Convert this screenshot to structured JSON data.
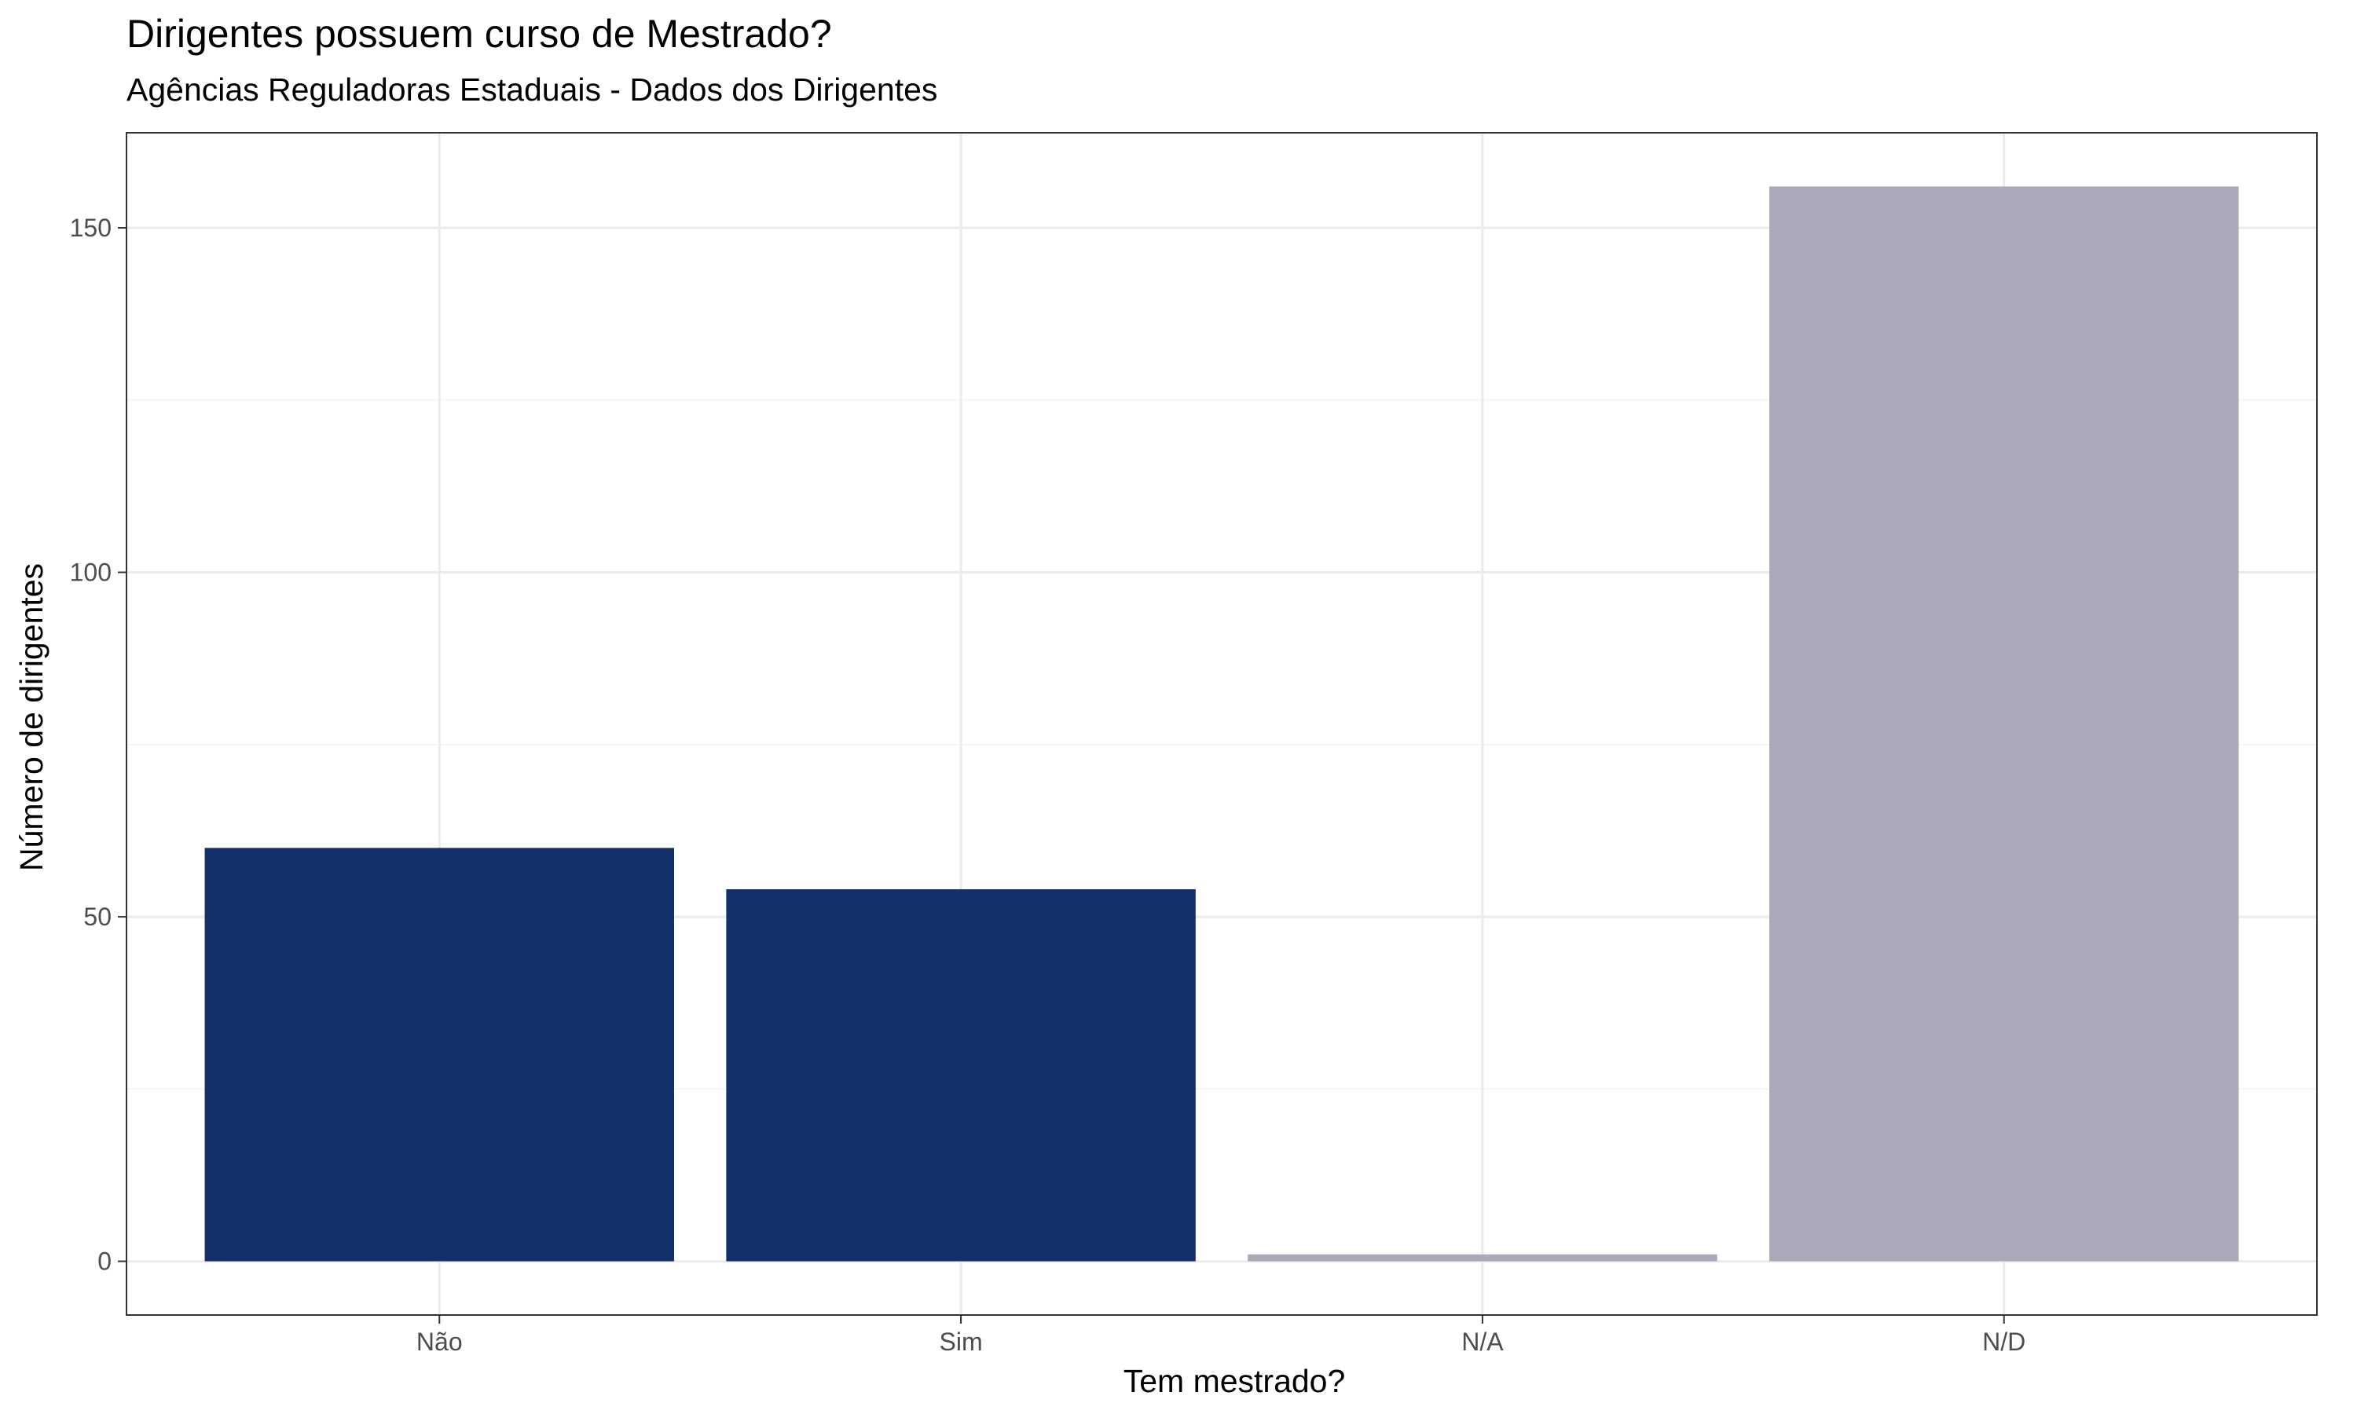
{
  "chart_data": {
    "type": "bar",
    "title": "Dirigentes possuem curso de Mestrado?",
    "subtitle": "Agências Reguladoras Estaduais - Dados dos Dirigentes",
    "xlabel": "Tem mestrado?",
    "ylabel": "Número de dirigentes",
    "categories": [
      "Não",
      "Sim",
      "N/A",
      "N/D"
    ],
    "values": [
      60,
      54,
      1,
      156
    ],
    "colors": [
      "#13306a",
      "#13306a",
      "#a9a9b9",
      "#a9a9b9"
    ],
    "ylim": [
      -7.8,
      163.8
    ],
    "yticks": [
      0,
      50,
      100,
      150
    ],
    "ytick_labels": [
      "0",
      "50",
      "100",
      "150"
    ],
    "y_minor_ticks": [
      25,
      75,
      125
    ],
    "grid": true,
    "legend": "none",
    "style": {
      "panel_border": "#333333",
      "grid_major": "#ebebeb",
      "grid_minor": "#f3f3f3",
      "background": "#ffffff"
    }
  }
}
